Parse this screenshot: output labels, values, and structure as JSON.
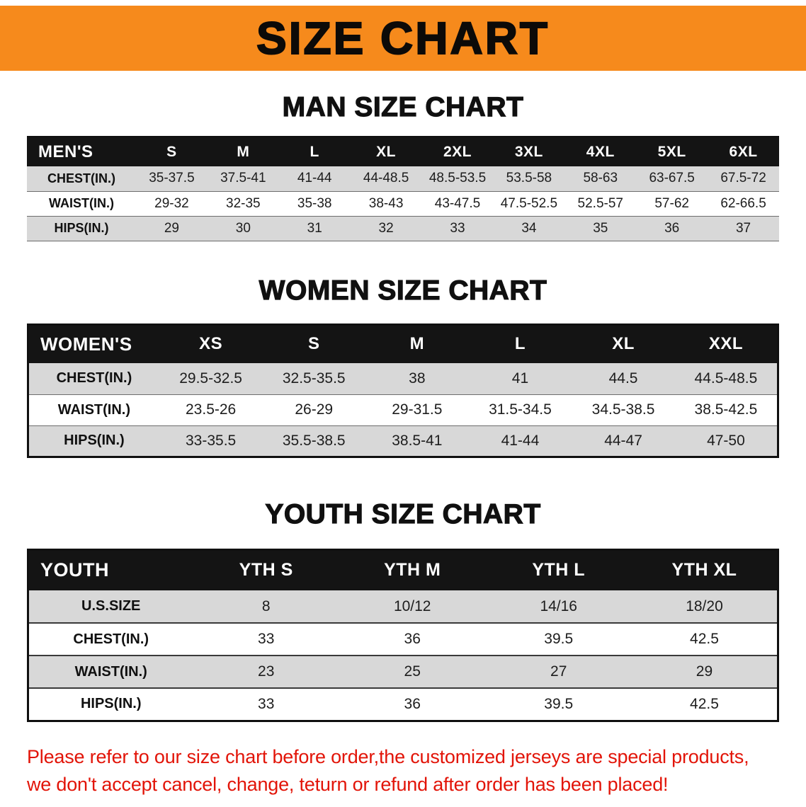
{
  "banner": {
    "title": "SIZE CHART"
  },
  "colors": {
    "banner_bg": "#f68a1c",
    "table_header_bg": "#141414",
    "row_alt_bg": "#d8d8d8",
    "disclaimer_red": "#e21408"
  },
  "sections": {
    "men": {
      "heading": "MAN SIZE CHART",
      "table": {
        "header": [
          "MEN'S",
          "S",
          "M",
          "L",
          "XL",
          "2XL",
          "3XL",
          "4XL",
          "5XL",
          "6XL"
        ],
        "rows": [
          [
            "CHEST(IN.)",
            "35-37.5",
            "37.5-41",
            "41-44",
            "44-48.5",
            "48.5-53.5",
            "53.5-58",
            "58-63",
            "63-67.5",
            "67.5-72"
          ],
          [
            "WAIST(IN.)",
            "29-32",
            "32-35",
            "35-38",
            "38-43",
            "43-47.5",
            "47.5-52.5",
            "52.5-57",
            "57-62",
            "62-66.5"
          ],
          [
            "HIPS(IN.)",
            "29",
            "30",
            "31",
            "32",
            "33",
            "34",
            "35",
            "36",
            "37"
          ]
        ]
      }
    },
    "women": {
      "heading": "WOMEN SIZE CHART",
      "table": {
        "header": [
          "WOMEN'S",
          "XS",
          "S",
          "M",
          "L",
          "XL",
          "XXL"
        ],
        "rows": [
          [
            "CHEST(IN.)",
            "29.5-32.5",
            "32.5-35.5",
            "38",
            "41",
            "44.5",
            "44.5-48.5"
          ],
          [
            "WAIST(IN.)",
            "23.5-26",
            "26-29",
            "29-31.5",
            "31.5-34.5",
            "34.5-38.5",
            "38.5-42.5"
          ],
          [
            "HIPS(IN.)",
            "33-35.5",
            "35.5-38.5",
            "38.5-41",
            "41-44",
            "44-47",
            "47-50"
          ]
        ]
      }
    },
    "youth": {
      "heading": "YOUTH SIZE CHART",
      "table": {
        "header": [
          "YOUTH",
          "YTH S",
          "YTH M",
          "YTH L",
          "YTH XL"
        ],
        "rows": [
          [
            "U.S.SIZE",
            "8",
            "10/12",
            "14/16",
            "18/20"
          ],
          [
            "CHEST(IN.)",
            "33",
            "36",
            "39.5",
            "42.5"
          ],
          [
            "WAIST(IN.)",
            "23",
            "25",
            "27",
            "29"
          ],
          [
            "HIPS(IN.)",
            "33",
            "36",
            "39.5",
            "42.5"
          ]
        ]
      }
    }
  },
  "disclaimer": {
    "line1": "Please refer to our size chart before order,the customized jerseys are special products,",
    "line2": "we don't accept cancel, change, teturn or refund after order has been placed!"
  }
}
